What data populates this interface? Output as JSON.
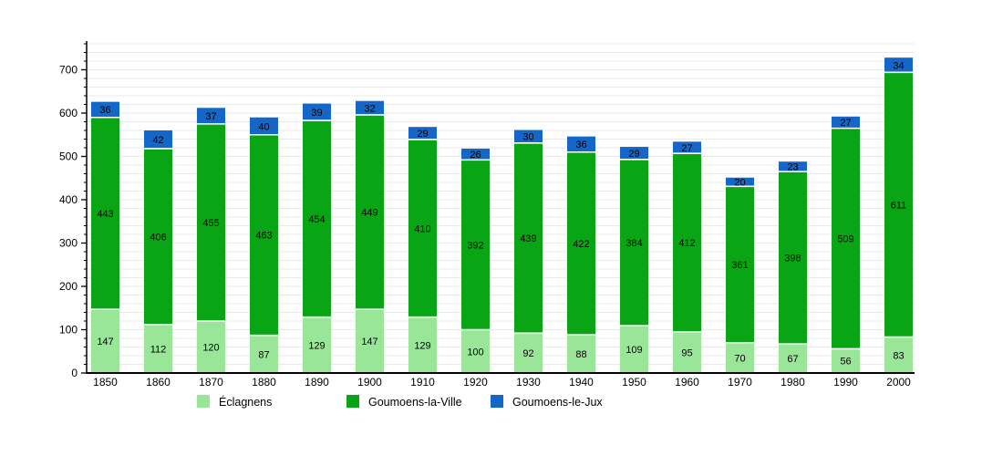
{
  "chart_data": {
    "type": "bar",
    "stacked": true,
    "title": "",
    "xlabel": "",
    "ylabel": "",
    "categories": [
      "1850",
      "1860",
      "1870",
      "1880",
      "1890",
      "1900",
      "1910",
      "1920",
      "1930",
      "1940",
      "1950",
      "1960",
      "1970",
      "1980",
      "1990",
      "2000"
    ],
    "series": [
      {
        "name": "Éclagnens",
        "color": "#99e699",
        "values": [
          147,
          112,
          120,
          87,
          129,
          147,
          129,
          100,
          92,
          88,
          109,
          95,
          70,
          67,
          56,
          83
        ]
      },
      {
        "name": "Goumoens-la-Ville",
        "color": "#0aa514",
        "values": [
          443,
          406,
          455,
          463,
          454,
          449,
          410,
          392,
          439,
          422,
          384,
          412,
          361,
          398,
          509,
          611
        ]
      },
      {
        "name": "Goumoens-le-Jux",
        "color": "#1467c8",
        "values": [
          36,
          42,
          37,
          40,
          39,
          32,
          29,
          26,
          30,
          36,
          29,
          27,
          20,
          23,
          27,
          34
        ]
      }
    ],
    "totals": [
      626,
      560,
      612,
      590,
      622,
      628,
      568,
      518,
      561,
      546,
      522,
      534,
      451,
      488,
      592,
      728
    ],
    "ylim": [
      0,
      760
    ],
    "y_major_step": 100,
    "y_minor_step": 20,
    "y_tick_labels": [
      "0",
      "100",
      "200",
      "300",
      "400",
      "500",
      "600",
      "700"
    ],
    "grid": true,
    "legend_position": "bottom",
    "colors": {
      "grid": "#e9e9e9",
      "axis": "#000000",
      "text": "#000000",
      "segment_separator": "#ffffff",
      "background": "#ffffff"
    }
  }
}
